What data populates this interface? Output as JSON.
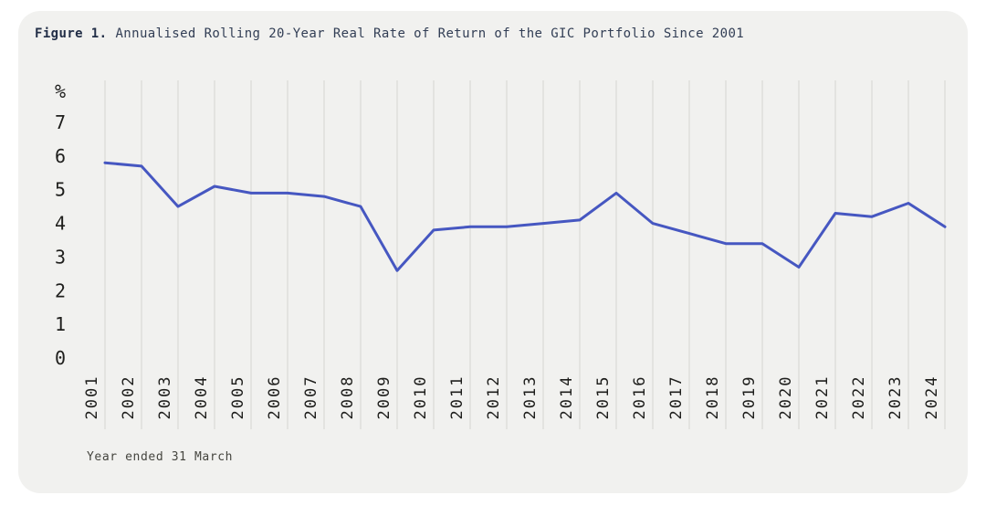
{
  "figure": {
    "title_prefix": "Figure 1.",
    "title_text": "Annualised Rolling 20-Year Real Rate of Return of the GIC Portfolio Since 2001",
    "footnote": "Year ended 31 March"
  },
  "chart_data": {
    "type": "line",
    "title": "Annualised Rolling 20-Year Real Rate of Return of the GIC Portfolio Since 2001",
    "x": [
      2001,
      2002,
      2003,
      2004,
      2005,
      2006,
      2007,
      2008,
      2009,
      2010,
      2011,
      2012,
      2013,
      2014,
      2015,
      2016,
      2017,
      2018,
      2019,
      2020,
      2021,
      2022,
      2023,
      2024
    ],
    "series": [
      {
        "name": "GIC Portfolio annualised rolling 20-year real rate of return (%)",
        "values": [
          5.8,
          5.7,
          4.5,
          5.1,
          4.9,
          4.9,
          4.8,
          4.5,
          2.6,
          3.8,
          3.9,
          3.9,
          4.0,
          4.1,
          4.9,
          4.0,
          3.7,
          3.4,
          3.4,
          2.7,
          4.3,
          4.2,
          4.6,
          3.9
        ]
      }
    ],
    "unit_label": "%",
    "y_ticks": [
      0,
      1,
      2,
      3,
      4,
      5,
      6,
      7
    ],
    "ylim": [
      0,
      7.8
    ],
    "xlabel": "Year ended 31 March",
    "ylabel": "%",
    "grid": "vertical-only",
    "legend": "none"
  },
  "colors": {
    "card_background": "#f1f1ef",
    "page_background": "#ffffff",
    "line": "#4657c1",
    "gridline": "#e3e3e0",
    "axis_text": "#1e1e1c",
    "title_text": "#323e55",
    "footnote_text": "#45453f"
  }
}
